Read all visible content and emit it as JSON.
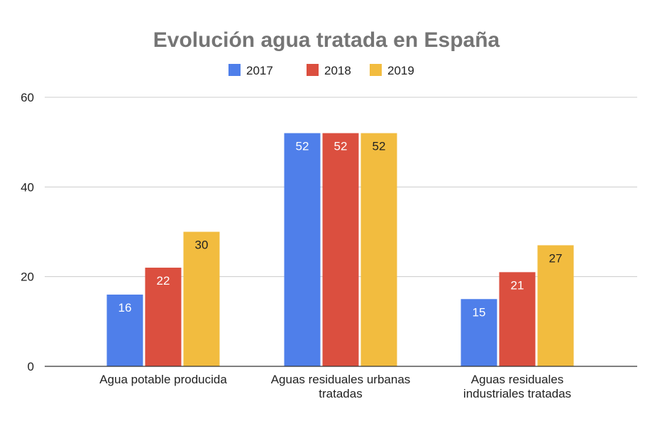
{
  "chart_data": {
    "type": "bar",
    "title": "Evolución agua tratada en España",
    "xlabel": "",
    "ylabel": "",
    "ylim": [
      0,
      60
    ],
    "yticks": [
      0,
      20,
      40,
      60
    ],
    "grid": true,
    "legend_position": "top",
    "categories": [
      [
        "Agua potable producida"
      ],
      [
        "Aguas residuales urbanas",
        "tratadas"
      ],
      [
        "Aguas residuales",
        "industriales tratadas"
      ]
    ],
    "series": [
      {
        "name": "2017",
        "color": "#4f7fea",
        "label_color": "#ffffff",
        "values": [
          16,
          52,
          15
        ]
      },
      {
        "name": "2018",
        "color": "#db4f3f",
        "label_color": "#ffffff",
        "values": [
          22,
          52,
          21
        ]
      },
      {
        "name": "2019",
        "color": "#f2bc3f",
        "label_color": "#222222",
        "values": [
          30,
          52,
          27
        ]
      }
    ],
    "gridline_color": "#cccccc",
    "axis_color": "#333333"
  }
}
